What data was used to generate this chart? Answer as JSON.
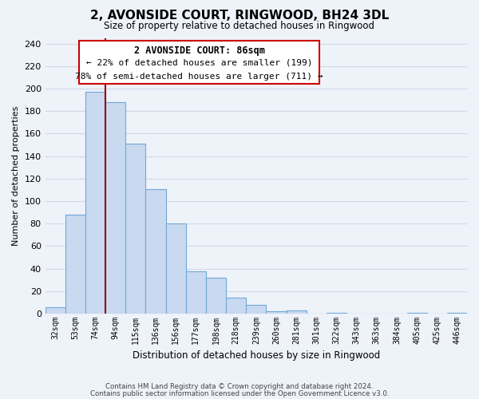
{
  "title": "2, AVONSIDE COURT, RINGWOOD, BH24 3DL",
  "subtitle": "Size of property relative to detached houses in Ringwood",
  "xlabel": "Distribution of detached houses by size in Ringwood",
  "ylabel": "Number of detached properties",
  "bar_labels": [
    "32sqm",
    "53sqm",
    "74sqm",
    "94sqm",
    "115sqm",
    "136sqm",
    "156sqm",
    "177sqm",
    "198sqm",
    "218sqm",
    "239sqm",
    "260sqm",
    "281sqm",
    "301sqm",
    "322sqm",
    "343sqm",
    "363sqm",
    "384sqm",
    "405sqm",
    "425sqm",
    "446sqm"
  ],
  "bar_values": [
    6,
    88,
    197,
    188,
    151,
    111,
    80,
    38,
    32,
    14,
    8,
    2,
    3,
    0,
    1,
    0,
    0,
    0,
    1,
    0,
    1
  ],
  "bar_color": "#c9d9f0",
  "bar_edge_color": "#6fa8d6",
  "grid_color": "#d0d8e8",
  "vline_x": 3,
  "vline_color": "#990000",
  "annotation_title": "2 AVONSIDE COURT: 86sqm",
  "annotation_line1": "← 22% of detached houses are smaller (199)",
  "annotation_line2": "78% of semi-detached houses are larger (711) →",
  "annotation_box_color": "#ffffff",
  "annotation_box_edge": "#cc0000",
  "ylim": [
    0,
    245
  ],
  "yticks": [
    0,
    20,
    40,
    60,
    80,
    100,
    120,
    140,
    160,
    180,
    200,
    220,
    240
  ],
  "footer1": "Contains HM Land Registry data © Crown copyright and database right 2024.",
  "footer2": "Contains public sector information licensed under the Open Government Licence v3.0.",
  "bg_color": "#eef2f9"
}
